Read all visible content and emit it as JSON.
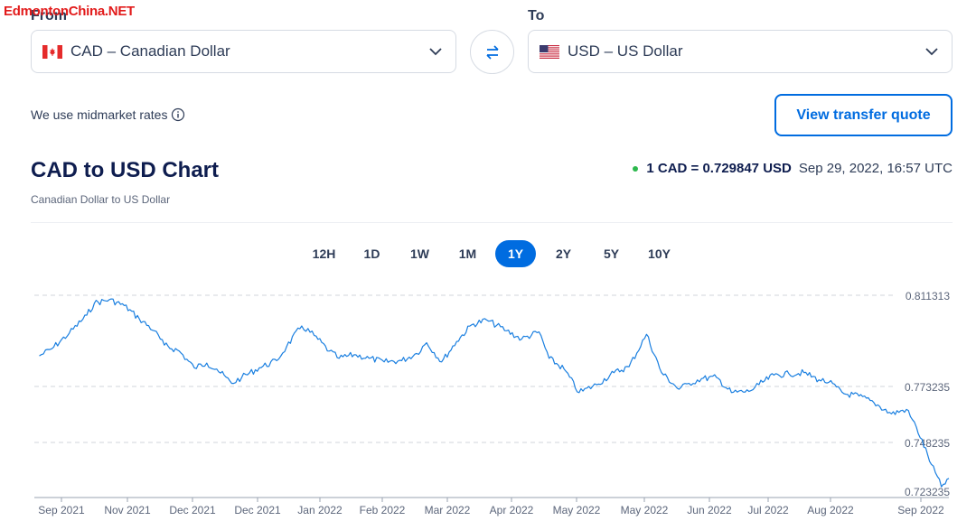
{
  "watermark": "EdmontonChina.NET",
  "from": {
    "label": "From",
    "value": "CAD – Canadian Dollar",
    "flag_icon": "canada-flag-icon"
  },
  "to": {
    "label": "To",
    "value": "USD – US Dollar",
    "flag_icon": "us-flag-icon"
  },
  "swap_icon": "swap-arrows-icon",
  "midmarket": {
    "text": "We use midmarket rates",
    "icon": "info-icon"
  },
  "quote_button": "View transfer quote",
  "title": "CAD to USD Chart",
  "subtitle": "Canadian Dollar to US Dollar",
  "rate": {
    "value": "1 CAD = 0.729847 USD",
    "time": "Sep 29, 2022, 16:57 UTC",
    "status_color": "#2db84d"
  },
  "tabs": [
    {
      "label": "12H",
      "active": false
    },
    {
      "label": "1D",
      "active": false
    },
    {
      "label": "1W",
      "active": false
    },
    {
      "label": "1M",
      "active": false
    },
    {
      "label": "1Y",
      "active": true
    },
    {
      "label": "2Y",
      "active": false
    },
    {
      "label": "5Y",
      "active": false
    },
    {
      "label": "10Y",
      "active": false
    }
  ],
  "colors": {
    "accent": "#006ce0",
    "line": "#1a7fe0",
    "title": "#0e1d4f",
    "grid": "#d0d4db"
  },
  "chart_data": {
    "type": "line",
    "title": "CAD to USD Chart",
    "xlabel": "",
    "ylabel": "",
    "grid": true,
    "y_ticks": [
      "0.811313",
      "0.773235",
      "0.748235",
      "0.723235"
    ],
    "ylim": [
      0.7232,
      0.8113
    ],
    "x_ticks": [
      "Sep 2021",
      "Nov 2021",
      "Dec 2021",
      "Dec 2021",
      "Jan 2022",
      "Feb 2022",
      "Mar 2022",
      "Apr 2022",
      "May 2022",
      "May 2022",
      "Jun 2022",
      "Jul 2022",
      "Aug 2022",
      "Sep 2022"
    ],
    "series": [
      {
        "name": "",
        "x": [
          "2021-09-30",
          "2021-10-05",
          "2021-10-12",
          "2021-10-19",
          "2021-10-22",
          "2021-10-28",
          "2021-11-03",
          "2021-11-09",
          "2021-11-15",
          "2021-11-19",
          "2021-11-25",
          "2021-12-01",
          "2021-12-06",
          "2021-12-10",
          "2021-12-16",
          "2021-12-20",
          "2021-12-27",
          "2022-01-03",
          "2022-01-07",
          "2022-01-13",
          "2022-01-18",
          "2022-01-24",
          "2022-01-28",
          "2022-02-03",
          "2022-02-09",
          "2022-02-15",
          "2022-02-22",
          "2022-02-28",
          "2022-03-04",
          "2022-03-10",
          "2022-03-16",
          "2022-03-22",
          "2022-03-28",
          "2022-04-05",
          "2022-04-11",
          "2022-04-18",
          "2022-04-22",
          "2022-04-28",
          "2022-05-04",
          "2022-05-11",
          "2022-05-18",
          "2022-05-24",
          "2022-05-31",
          "2022-06-06",
          "2022-06-13",
          "2022-06-17",
          "2022-06-22",
          "2022-06-28",
          "2022-07-04",
          "2022-07-11",
          "2022-07-15",
          "2022-07-21",
          "2022-07-27",
          "2022-08-02",
          "2022-08-08",
          "2022-08-12",
          "2022-08-18",
          "2022-08-24",
          "2022-08-30",
          "2022-09-06",
          "2022-09-12",
          "2022-09-16",
          "2022-09-22",
          "2022-09-26",
          "2022-09-29"
        ],
        "y": [
          0.786,
          0.789,
          0.7955,
          0.803,
          0.808,
          0.8095,
          0.807,
          0.8015,
          0.7965,
          0.7905,
          0.788,
          0.781,
          0.783,
          0.7805,
          0.7745,
          0.777,
          0.781,
          0.784,
          0.79,
          0.7985,
          0.7945,
          0.788,
          0.785,
          0.7865,
          0.785,
          0.7835,
          0.784,
          0.787,
          0.7915,
          0.7835,
          0.792,
          0.799,
          0.801,
          0.7965,
          0.793,
          0.796,
          0.785,
          0.7805,
          0.7705,
          0.774,
          0.779,
          0.7815,
          0.795,
          0.779,
          0.772,
          0.7745,
          0.7765,
          0.777,
          0.7705,
          0.771,
          0.774,
          0.778,
          0.7785,
          0.779,
          0.776,
          0.775,
          0.77,
          0.769,
          0.766,
          0.761,
          0.763,
          0.755,
          0.737,
          0.7255,
          0.7298
        ]
      }
    ]
  }
}
